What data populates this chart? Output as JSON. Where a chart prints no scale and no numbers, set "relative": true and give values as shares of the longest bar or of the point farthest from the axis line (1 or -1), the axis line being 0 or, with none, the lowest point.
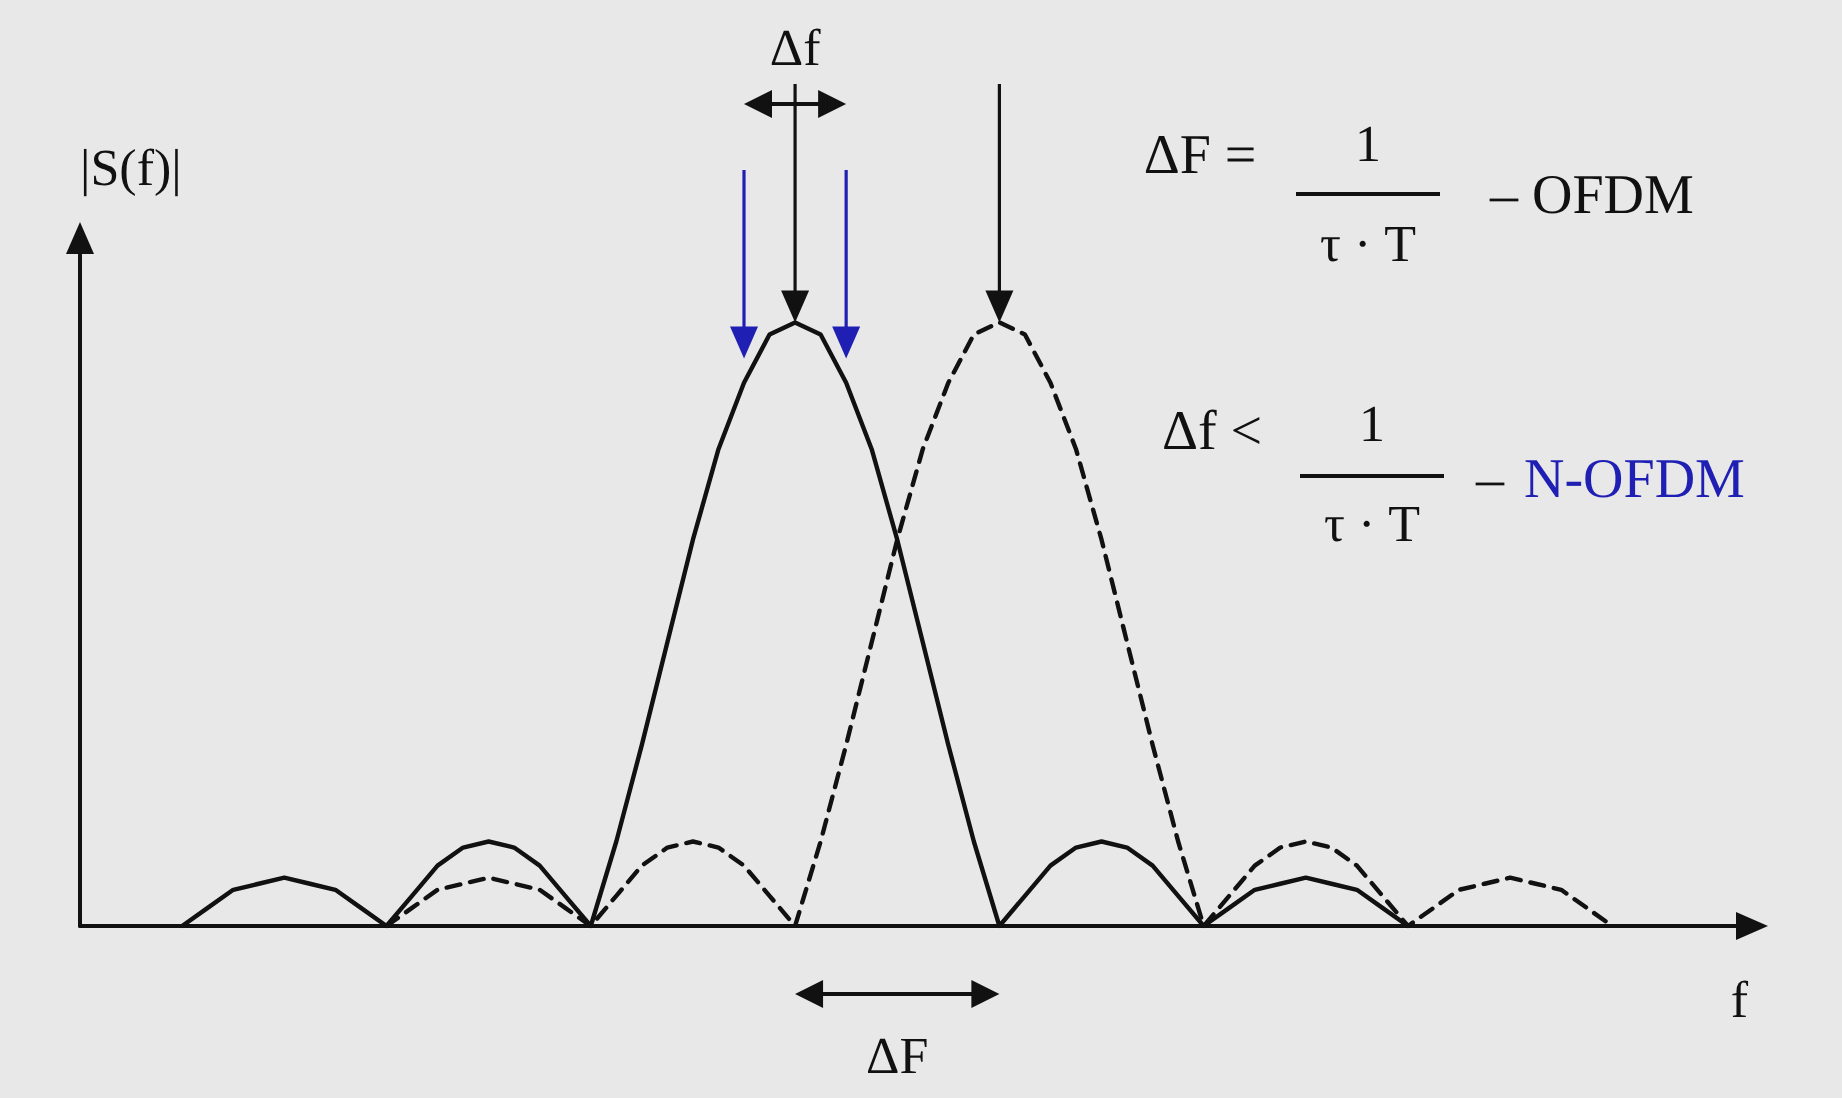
{
  "chart_data": {
    "type": "line",
    "relative": true,
    "ylabel": "|S(f)|",
    "xlabel": "f",
    "grid": false,
    "marker": "none",
    "categories": [
      null,
      null,
      null,
      null,
      null,
      null,
      null,
      null,
      null,
      null,
      null,
      null,
      null,
      null,
      null,
      null,
      null,
      null,
      null,
      null,
      null,
      null,
      null,
      null,
      null,
      null,
      null,
      null,
      null,
      null,
      null,
      null,
      null,
      null,
      null,
      null,
      null,
      null,
      null,
      null,
      null,
      null,
      null,
      null,
      null,
      null,
      null,
      null,
      null,
      null,
      null,
      null,
      null,
      null,
      null,
      null,
      null,
      null,
      null,
      null,
      null,
      null,
      null,
      null,
      null,
      null
    ],
    "series": [
      {
        "color": "#111111",
        "line_style": "solid",
        "values": [
          null,
          null,
          null,
          null,
          0,
          0.03,
          0.06,
          0.07,
          0.08,
          0.07,
          0.06,
          0.03,
          0,
          0.05,
          0.1,
          0.13,
          0.14,
          0.13,
          0.1,
          0.05,
          0,
          0.14,
          0.3,
          0.47,
          0.64,
          0.79,
          0.9,
          0.98,
          1,
          0.98,
          0.9,
          0.79,
          0.64,
          0.47,
          0.3,
          0.14,
          0,
          0.05,
          0.1,
          0.13,
          0.14,
          0.13,
          0.1,
          0.05,
          0,
          0.03,
          0.06,
          0.07,
          0.08,
          0.07,
          0.06,
          0.03,
          0,
          null,
          null,
          null,
          null,
          null,
          null,
          null,
          null,
          null,
          null,
          null,
          null,
          null
        ]
      },
      {
        "color": "#111111",
        "line_style": "dashed",
        "values": [
          null,
          null,
          null,
          null,
          null,
          null,
          null,
          null,
          null,
          null,
          null,
          null,
          0,
          0.03,
          0.06,
          0.07,
          0.08,
          0.07,
          0.06,
          0.03,
          0,
          0.05,
          0.1,
          0.13,
          0.14,
          0.13,
          0.1,
          0.05,
          0,
          0.14,
          0.3,
          0.47,
          0.64,
          0.79,
          0.9,
          0.98,
          1,
          0.98,
          0.9,
          0.79,
          0.64,
          0.47,
          0.3,
          0.14,
          0,
          0.05,
          0.1,
          0.13,
          0.14,
          0.13,
          0.1,
          0.05,
          0,
          0.03,
          0.06,
          0.07,
          0.08,
          0.07,
          0.06,
          0.03,
          0,
          null,
          null,
          null,
          null,
          null
        ]
      }
    ],
    "annotations": [
      "Δf",
      "ΔF",
      "ΔF =",
      "1",
      "τ · T",
      "– OFDM",
      "Δf <",
      "1",
      "τ · T",
      "–",
      "N-OFDM"
    ]
  }
}
